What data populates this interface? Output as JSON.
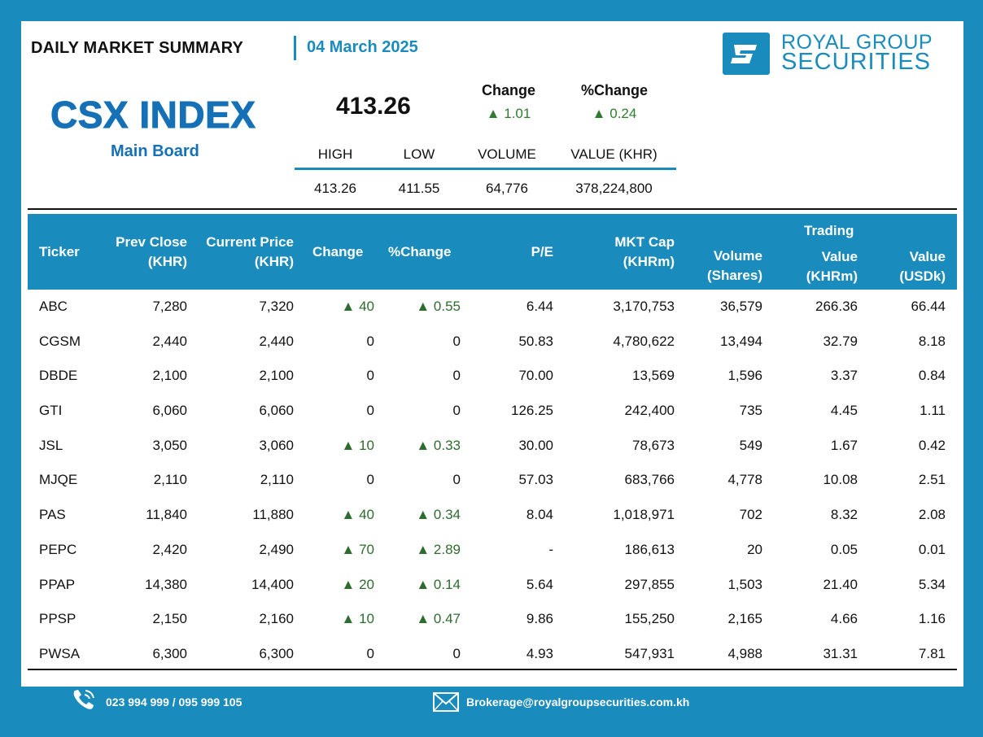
{
  "header": {
    "report_title": "DAILY MARKET SUMMARY",
    "date": "04 March 2025",
    "brand_line1": "ROYAL GROUP",
    "brand_line2": "SECURITIES"
  },
  "index": {
    "name": "CSX INDEX",
    "board": "Main Board",
    "value": "413.26",
    "change_label": "Change",
    "change_value": "1.01",
    "pct_change_label": "%Change",
    "pct_change_value": "0.24"
  },
  "summary": {
    "headers": [
      "HIGH",
      "LOW",
      "VOLUME",
      "VALUE (KHR)"
    ],
    "values": [
      "413.26",
      "411.55",
      "64,776",
      "378,224,800"
    ]
  },
  "table": {
    "headers": {
      "ticker": "Ticker",
      "prev_close_1": "Prev Close",
      "prev_close_2": "(KHR)",
      "current_price_1": "Current Price",
      "current_price_2": "(KHR)",
      "change": "Change",
      "pct_change": "%Change",
      "pe": "P/E",
      "mkt_cap_1": "MKT Cap",
      "mkt_cap_2": "(KHRm)",
      "volume_1": "Volume",
      "volume_2": "(Shares)",
      "trading": "Trading",
      "value_khr_1": "Value",
      "value_khr_2": "(KHRm)",
      "value_usd_1": "Value",
      "value_usd_2": "(USDk)"
    },
    "rows": [
      {
        "ticker": "ABC",
        "prev": "7,280",
        "cur": "7,320",
        "chg": "40",
        "pct": "0.55",
        "up": true,
        "pe": "6.44",
        "mcap": "3,170,753",
        "vol": "36,579",
        "vkhr": "266.36",
        "vusd": "66.44"
      },
      {
        "ticker": "CGSM",
        "prev": "2,440",
        "cur": "2,440",
        "chg": "0",
        "pct": "0",
        "up": false,
        "pe": "50.83",
        "mcap": "4,780,622",
        "vol": "13,494",
        "vkhr": "32.79",
        "vusd": "8.18"
      },
      {
        "ticker": "DBDE",
        "prev": "2,100",
        "cur": "2,100",
        "chg": "0",
        "pct": "0",
        "up": false,
        "pe": "70.00",
        "mcap": "13,569",
        "vol": "1,596",
        "vkhr": "3.37",
        "vusd": "0.84"
      },
      {
        "ticker": "GTI",
        "prev": "6,060",
        "cur": "6,060",
        "chg": "0",
        "pct": "0",
        "up": false,
        "pe": "126.25",
        "mcap": "242,400",
        "vol": "735",
        "vkhr": "4.45",
        "vusd": "1.11"
      },
      {
        "ticker": "JSL",
        "prev": "3,050",
        "cur": "3,060",
        "chg": "10",
        "pct": "0.33",
        "up": true,
        "pe": "30.00",
        "mcap": "78,673",
        "vol": "549",
        "vkhr": "1.67",
        "vusd": "0.42"
      },
      {
        "ticker": "MJQE",
        "prev": "2,110",
        "cur": "2,110",
        "chg": "0",
        "pct": "0",
        "up": false,
        "pe": "57.03",
        "mcap": "683,766",
        "vol": "4,778",
        "vkhr": "10.08",
        "vusd": "2.51"
      },
      {
        "ticker": "PAS",
        "prev": "11,840",
        "cur": "11,880",
        "chg": "40",
        "pct": "0.34",
        "up": true,
        "pe": "8.04",
        "mcap": "1,018,971",
        "vol": "702",
        "vkhr": "8.32",
        "vusd": "2.08"
      },
      {
        "ticker": "PEPC",
        "prev": "2,420",
        "cur": "2,490",
        "chg": "70",
        "pct": "2.89",
        "up": true,
        "pe": "-",
        "mcap": "186,613",
        "vol": "20",
        "vkhr": "0.05",
        "vusd": "0.01"
      },
      {
        "ticker": "PPAP",
        "prev": "14,380",
        "cur": "14,400",
        "chg": "20",
        "pct": "0.14",
        "up": true,
        "pe": "5.64",
        "mcap": "297,855",
        "vol": "1,503",
        "vkhr": "21.40",
        "vusd": "5.34"
      },
      {
        "ticker": "PPSP",
        "prev": "2,150",
        "cur": "2,160",
        "chg": "10",
        "pct": "0.47",
        "up": true,
        "pe": "9.86",
        "mcap": "155,250",
        "vol": "2,165",
        "vkhr": "4.66",
        "vusd": "1.16"
      },
      {
        "ticker": "PWSA",
        "prev": "6,300",
        "cur": "6,300",
        "chg": "0",
        "pct": "0",
        "up": false,
        "pe": "4.93",
        "mcap": "547,931",
        "vol": "4,988",
        "vkhr": "31.31",
        "vusd": "7.81"
      }
    ]
  },
  "footer": {
    "phone": "023 994 999 / 095 999 105",
    "email": "Brokerage@royalgroupsecurities.com.kh"
  },
  "colors": {
    "brand_blue": "#1a8bbd",
    "index_blue": "#1670b6",
    "up_green": "#2e6b2e"
  },
  "icons": {
    "phone": "phone-icon",
    "email": "envelope-icon",
    "up_arrow": "triangle-up-icon"
  }
}
